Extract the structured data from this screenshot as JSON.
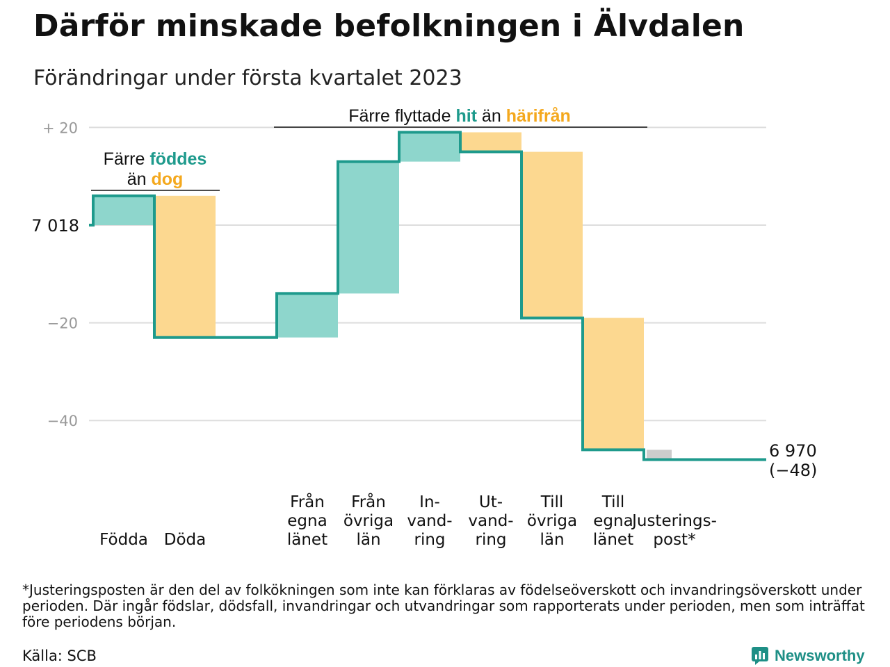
{
  "title": "Därför minskade befolkningen i Älvdalen",
  "subtitle": "Förändringar under första kvartalet 2023",
  "chart_data": {
    "type": "waterfall",
    "start_value": 7018,
    "start_label": "7 018",
    "end_label_value": "6 970",
    "end_label_change": "(−48)",
    "ylim": [
      -48,
      22
    ],
    "yticks": [
      20,
      -20,
      -40
    ],
    "ytick_labels": [
      "+ 20",
      "−20",
      "−40"
    ],
    "steps": [
      {
        "id": "fodda",
        "label_lines": [
          "Födda"
        ],
        "change": 6,
        "kind": "in"
      },
      {
        "id": "doda",
        "label_lines": [
          "Döda"
        ],
        "change": -29,
        "kind": "out"
      },
      {
        "id": "gap",
        "label_lines": [],
        "change": 0,
        "kind": "gap"
      },
      {
        "id": "fran-egna-lanet",
        "label_lines": [
          "Från",
          "egna",
          "länet"
        ],
        "change": 9,
        "kind": "in"
      },
      {
        "id": "fran-ovriga-lan",
        "label_lines": [
          "Från",
          "övriga",
          "län"
        ],
        "change": 27,
        "kind": "in"
      },
      {
        "id": "invandring",
        "label_lines": [
          "In-",
          "vand-",
          "ring"
        ],
        "change": 6,
        "kind": "in"
      },
      {
        "id": "utvandring",
        "label_lines": [
          "Ut-",
          "vand-",
          "ring"
        ],
        "change": -4,
        "kind": "out"
      },
      {
        "id": "till-ovriga-lan",
        "label_lines": [
          "Till",
          "övriga",
          "län"
        ],
        "change": -34,
        "kind": "out"
      },
      {
        "id": "till-egna-lanet",
        "label_lines": [
          "Till",
          "egna",
          "länet"
        ],
        "change": -27,
        "kind": "out"
      },
      {
        "id": "justeringspost",
        "label_lines": [
          "Justerings-",
          "post*"
        ],
        "change": -2,
        "kind": "adjust"
      }
    ],
    "annotations": {
      "birth": {
        "pre": "Färre ",
        "hi1": "föddes",
        "line2_pre": "än ",
        "hi2": "dog"
      },
      "migration": {
        "pre": "Färre flyttade ",
        "hi1": "hit",
        "mid": " än ",
        "hi2": "härifrån"
      }
    },
    "colors": {
      "in": "#8ed6cc",
      "out": "#fcd890",
      "adjust": "#cccccc",
      "line": "#1e9a8c",
      "grid": "#dddddd"
    }
  },
  "footnote": "*Justeringsposten är den del av folkökningen som inte kan förklaras av födelseöverskott och invandringsöverskott under perioden. Där ingår födslar, dödsfall, invandringar och utvandringar som rapporterats under perioden, men som inträffat före periodens början.",
  "source": "Källa: SCB",
  "brand": "Newsworthy"
}
